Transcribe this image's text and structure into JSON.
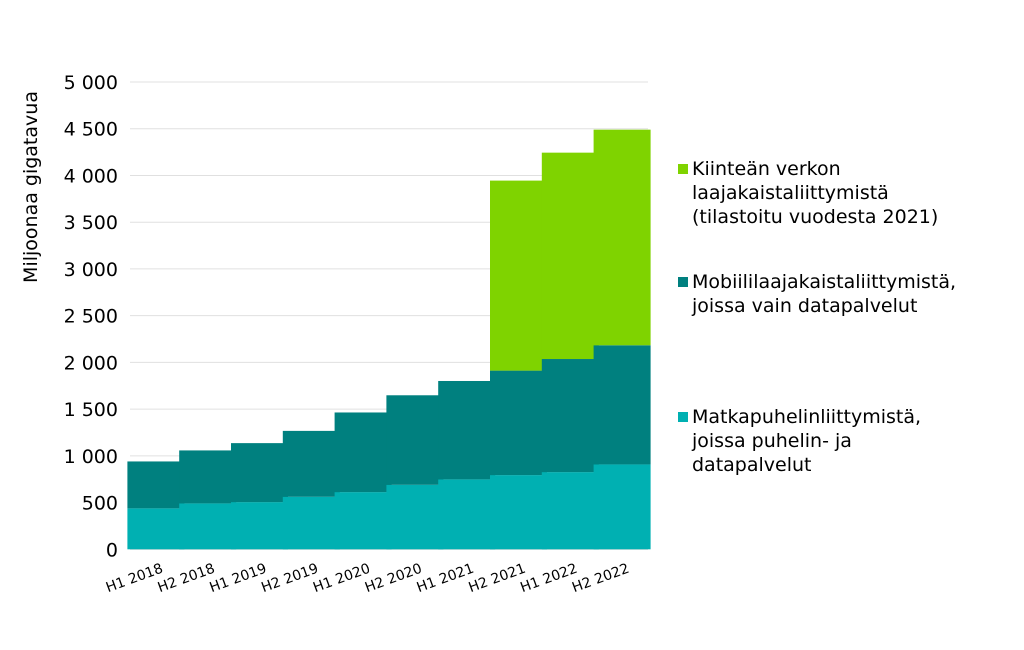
{
  "chart_data": {
    "type": "bar",
    "stacked": true,
    "title": "",
    "xlabel": "",
    "ylabel": "Miljoonaa gigatavua",
    "ylim": [
      0,
      5000
    ],
    "yticks": [
      "0",
      "500",
      "1 000",
      "1 500",
      "2 000",
      "2 500",
      "3 000",
      "3 500",
      "4 000",
      "4 500",
      "5 000"
    ],
    "ytick_values": [
      0,
      500,
      1000,
      1500,
      2000,
      2500,
      3000,
      3500,
      4000,
      4500,
      5000
    ],
    "grid": "horizontal",
    "legend_position": "right",
    "categories": [
      "H1 2018",
      "H2 2018",
      "H1 2019",
      "H2 2019",
      "H1 2020",
      "H2 2020",
      "H1 2021",
      "H2 2021",
      "H1 2022",
      "H2 2022"
    ],
    "series": [
      {
        "name": "Matkapuhelinliittymistä, joissa puhelin- ja datapalvelut",
        "color": "#00b0b2",
        "values": [
          438,
          491,
          505,
          562,
          612,
          690,
          748,
          794,
          826,
          908
        ]
      },
      {
        "name": "Mobiililaajakaistaliittymistä, joissa vain datapalvelut",
        "color": "#00807f",
        "values": [
          502,
          567,
          631,
          705,
          852,
          958,
          1053,
          1118,
          1210,
          1275
        ]
      },
      {
        "name": "Kiinteän verkon laajakaistaliittymistä (tilastoitu vuodesta 2021)",
        "color": "#7fd300",
        "values": [
          0,
          0,
          0,
          0,
          0,
          0,
          0,
          2033,
          2208,
          2307
        ]
      }
    ],
    "legend_text": [
      "Kiinteän verkon\nlaajakaistaliittymistä\n(tilastoitu vuodesta 2021)",
      "Mobiililaajakaistaliittymistä,\njoissa vain datapalvelut",
      "Matkapuhelinliittymistä,\njoissa puhelin- ja\ndatapalvelut"
    ]
  }
}
